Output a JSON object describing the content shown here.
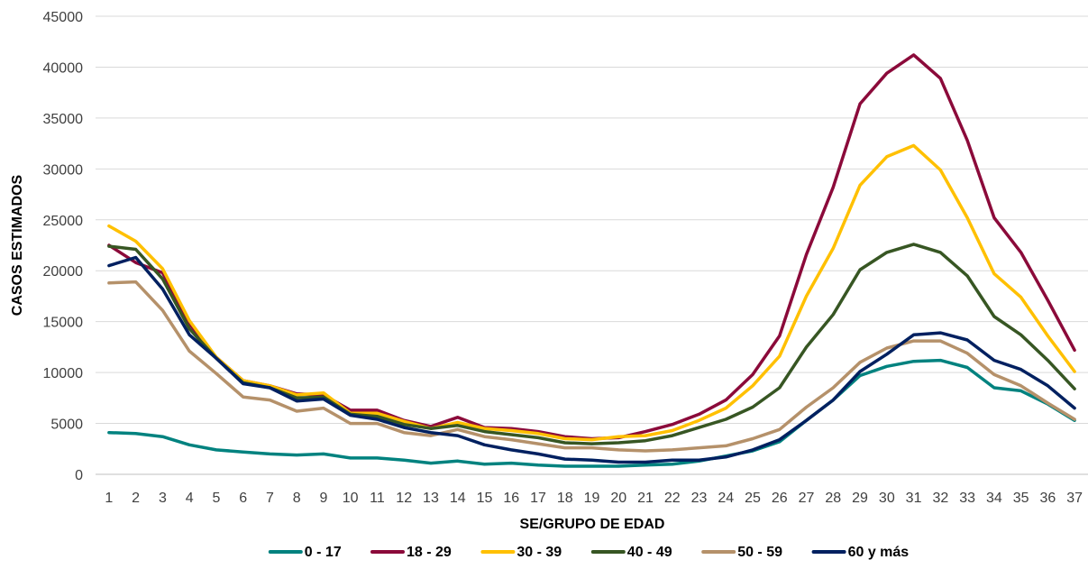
{
  "chart_data": {
    "type": "line",
    "xlabel": "SE/GRUPO DE EDAD",
    "ylabel": "CASOS ESTIMADOS",
    "ylim": [
      0,
      45000
    ],
    "yticks": [
      0,
      5000,
      10000,
      15000,
      20000,
      25000,
      30000,
      35000,
      40000,
      45000
    ],
    "grid": true,
    "legend_position": "bottom",
    "x": [
      1,
      2,
      3,
      4,
      5,
      6,
      7,
      8,
      9,
      10,
      11,
      12,
      13,
      14,
      15,
      16,
      17,
      18,
      19,
      20,
      21,
      22,
      23,
      24,
      25,
      26,
      27,
      28,
      29,
      30,
      31,
      32,
      33,
      34,
      35,
      36,
      37
    ],
    "series": [
      {
        "name": "0 - 17",
        "color": "#00827F",
        "values": [
          4100,
          4000,
          3700,
          2900,
          2400,
          2200,
          2000,
          1900,
          2000,
          1600,
          1600,
          1400,
          1100,
          1300,
          1000,
          1100,
          900,
          800,
          800,
          800,
          900,
          1000,
          1300,
          1800,
          2300,
          3200,
          5300,
          7300,
          9700,
          10600,
          11100,
          11200,
          10500,
          8500,
          8200,
          6900,
          5300
        ]
      },
      {
        "name": "18 - 29",
        "color": "#8B0A3A",
        "values": [
          22500,
          20800,
          19800,
          14800,
          11500,
          9200,
          8700,
          7900,
          7800,
          6300,
          6300,
          5300,
          4700,
          5600,
          4600,
          4500,
          4200,
          3700,
          3500,
          3600,
          4200,
          4900,
          5900,
          7300,
          9800,
          13600,
          21600,
          28200,
          36400,
          39400,
          41200,
          38900,
          32800,
          25200,
          21800,
          17100,
          12200
        ]
      },
      {
        "name": "30 - 39",
        "color": "#FFC000",
        "values": [
          24400,
          22900,
          20200,
          15100,
          11500,
          9200,
          8700,
          7800,
          8000,
          6000,
          6000,
          5200,
          4500,
          5100,
          4500,
          4300,
          4000,
          3500,
          3400,
          3700,
          3800,
          4300,
          5300,
          6500,
          8700,
          11600,
          17500,
          22200,
          28400,
          31200,
          32300,
          29900,
          25200,
          19700,
          17400,
          13600,
          10100
        ]
      },
      {
        "name": "40 - 49",
        "color": "#375623",
        "values": [
          22400,
          22100,
          19200,
          14300,
          11400,
          9000,
          8500,
          7500,
          7600,
          5900,
          5700,
          4900,
          4500,
          4800,
          4200,
          3900,
          3600,
          3100,
          3000,
          3100,
          3300,
          3800,
          4600,
          5400,
          6600,
          8500,
          12500,
          15700,
          20100,
          21800,
          22600,
          21800,
          19500,
          15500,
          13700,
          11200,
          8400
        ]
      },
      {
        "name": "50 - 59",
        "color": "#B5916A",
        "values": [
          18800,
          18900,
          16100,
          12100,
          9900,
          7600,
          7300,
          6200,
          6500,
          5000,
          5000,
          4100,
          3800,
          4400,
          3700,
          3400,
          3000,
          2600,
          2600,
          2400,
          2300,
          2400,
          2600,
          2800,
          3500,
          4400,
          6600,
          8500,
          11000,
          12400,
          13100,
          13100,
          11900,
          9800,
          8700,
          7000,
          5400
        ]
      },
      {
        "name": "60 y más",
        "color": "#002060",
        "values": [
          20500,
          21300,
          18200,
          13700,
          11400,
          8900,
          8500,
          7200,
          7400,
          5800,
          5400,
          4600,
          4100,
          3800,
          2900,
          2400,
          2000,
          1500,
          1400,
          1200,
          1200,
          1400,
          1400,
          1700,
          2400,
          3400,
          5300,
          7300,
          10100,
          11800,
          13700,
          13900,
          13200,
          11200,
          10300,
          8700,
          6500
        ]
      }
    ]
  }
}
